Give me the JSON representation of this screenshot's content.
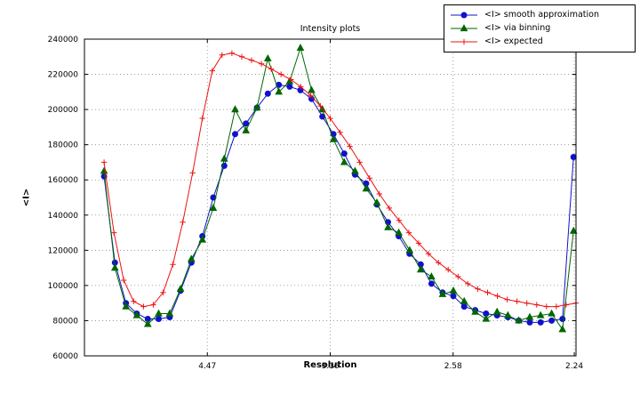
{
  "window": {
    "background": "#ffffff"
  },
  "chart_data": {
    "type": "line",
    "title": "Intensity plots",
    "xlabel": "Resolution",
    "ylabel": "<I>",
    "xlim": [
      0,
      0.2
    ],
    "ylim": [
      60000,
      240000
    ],
    "grid": true,
    "grid_style": "dotted",
    "legend_position": "upper right",
    "yticks": [
      60000,
      80000,
      100000,
      120000,
      140000,
      160000,
      180000,
      200000,
      220000,
      240000
    ],
    "xticks": [
      {
        "value": 0.05,
        "label": "4.47"
      },
      {
        "value": 0.1,
        "label": "3.16"
      },
      {
        "value": 0.15,
        "label": "2.58"
      },
      {
        "value": 0.1993,
        "label": "2.24"
      }
    ],
    "series": [
      {
        "name": "<I> smooth approximation",
        "color": "#1111cc",
        "marker": "circle",
        "x": [
          0.008,
          0.0124,
          0.0169,
          0.0213,
          0.0258,
          0.0302,
          0.0347,
          0.0391,
          0.0435,
          0.048,
          0.0524,
          0.0569,
          0.0613,
          0.0657,
          0.0702,
          0.0746,
          0.0791,
          0.0835,
          0.0879,
          0.0924,
          0.0968,
          0.1013,
          0.1057,
          0.1101,
          0.1146,
          0.119,
          0.1235,
          0.1279,
          0.1323,
          0.1368,
          0.1412,
          0.1457,
          0.1501,
          0.1545,
          0.159,
          0.1634,
          0.1679,
          0.1723,
          0.1767,
          0.1812,
          0.1856,
          0.1901,
          0.1945,
          0.199
        ],
        "y": [
          162000,
          113000,
          90000,
          84000,
          81000,
          81000,
          82000,
          97000,
          113000,
          128000,
          150000,
          168000,
          186000,
          192000,
          201000,
          209000,
          214000,
          213000,
          211000,
          206000,
          196000,
          186000,
          175000,
          163000,
          158000,
          146000,
          136000,
          128000,
          118000,
          112000,
          101000,
          96000,
          94000,
          88000,
          86000,
          84000,
          83000,
          82000,
          80000,
          79000,
          79000,
          80000,
          81000,
          173000
        ]
      },
      {
        "name": "<I> via binning",
        "color": "#006600",
        "marker": "triangle",
        "x": [
          0.008,
          0.0124,
          0.0169,
          0.0213,
          0.0258,
          0.0302,
          0.0347,
          0.0391,
          0.0435,
          0.048,
          0.0524,
          0.0569,
          0.0613,
          0.0657,
          0.0702,
          0.0746,
          0.0791,
          0.0835,
          0.0879,
          0.0924,
          0.0968,
          0.1013,
          0.1057,
          0.1101,
          0.1146,
          0.119,
          0.1235,
          0.1279,
          0.1323,
          0.1368,
          0.1412,
          0.1457,
          0.1501,
          0.1545,
          0.159,
          0.1634,
          0.1679,
          0.1723,
          0.1767,
          0.1812,
          0.1856,
          0.1901,
          0.1945,
          0.199
        ],
        "y": [
          165000,
          110000,
          88000,
          83000,
          78000,
          84000,
          84000,
          98000,
          115000,
          126000,
          144000,
          172000,
          200000,
          188000,
          201000,
          229000,
          210000,
          216000,
          235000,
          211000,
          200000,
          183000,
          170000,
          165000,
          155000,
          147000,
          133000,
          130000,
          120000,
          109000,
          105000,
          95000,
          97000,
          91000,
          85000,
          81000,
          85000,
          83000,
          80000,
          82000,
          83000,
          84000,
          75000,
          131000
        ]
      },
      {
        "name": "<I> expected",
        "color": "#ee1111",
        "marker": "plus",
        "x": [
          0.008,
          0.012,
          0.016,
          0.02,
          0.024,
          0.028,
          0.032,
          0.036,
          0.04,
          0.044,
          0.048,
          0.052,
          0.056,
          0.06,
          0.064,
          0.068,
          0.072,
          0.076,
          0.08,
          0.084,
          0.088,
          0.092,
          0.096,
          0.1,
          0.104,
          0.108,
          0.112,
          0.116,
          0.12,
          0.124,
          0.128,
          0.132,
          0.136,
          0.14,
          0.144,
          0.148,
          0.152,
          0.156,
          0.16,
          0.164,
          0.168,
          0.172,
          0.176,
          0.18,
          0.184,
          0.188,
          0.192,
          0.196,
          0.2
        ],
        "y": [
          170000,
          130000,
          103000,
          91000,
          88000,
          89000,
          96000,
          112000,
          136000,
          164000,
          195000,
          222000,
          231000,
          232000,
          230000,
          228000,
          226000,
          223000,
          220000,
          217000,
          213000,
          208000,
          202000,
          195000,
          187000,
          179000,
          170000,
          161000,
          152000,
          144000,
          137000,
          130000,
          124000,
          118000,
          113000,
          109000,
          105000,
          101000,
          98000,
          96000,
          94000,
          92000,
          91000,
          90000,
          89000,
          88000,
          88000,
          89000,
          90000
        ]
      }
    ]
  }
}
